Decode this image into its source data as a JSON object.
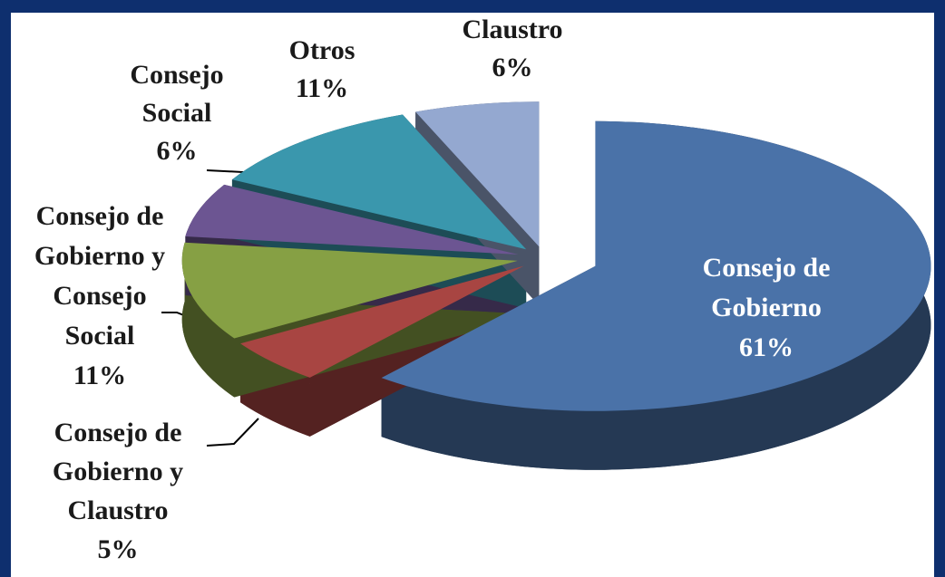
{
  "chart_data": {
    "type": "pie",
    "categories": [
      "Consejo de Gobierno",
      "Consejo de Gobierno y Claustro",
      "Consejo de Gobierno y Consejo Social",
      "Consejo Social",
      "Otros",
      "Claustro"
    ],
    "values": [
      61,
      5,
      11,
      6,
      11,
      6
    ],
    "value_labels": [
      "61%",
      "5%",
      "11%",
      "6%",
      "11%",
      "6%"
    ],
    "colors": [
      "#4a72a8",
      "#a84542",
      "#86a044",
      "#6c5592",
      "#3a97ad",
      "#94a8d0"
    ]
  }
}
